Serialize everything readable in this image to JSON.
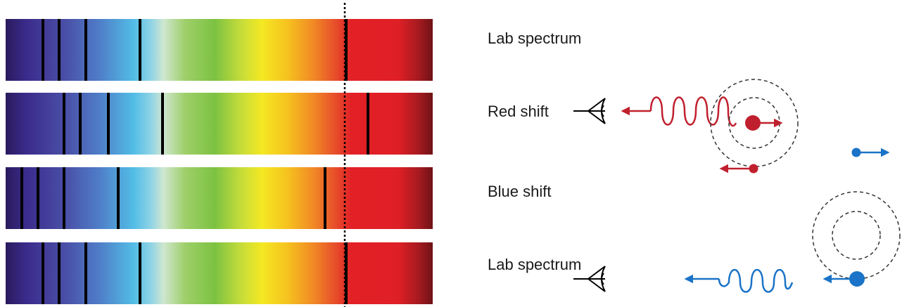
{
  "labels": {
    "lab_top": "Lab spectrum",
    "red": "Red shift",
    "blue": "Blue shift",
    "lab_bottom": "Lab spectrum"
  },
  "colors": {
    "redshift": "#c0202e",
    "blueshift": "#1a73c7",
    "line": "#000000"
  },
  "spectra": [
    {
      "name": "lab-top",
      "lines": [
        0.087,
        0.125,
        0.187,
        0.315,
        0.798
      ]
    },
    {
      "name": "redshifted",
      "lines": [
        0.137,
        0.175,
        0.24,
        0.368,
        0.848
      ]
    },
    {
      "name": "blueshifted",
      "lines": [
        0.038,
        0.075,
        0.137,
        0.263,
        0.748
      ]
    },
    {
      "name": "lab-bottom",
      "lines": [
        0.087,
        0.125,
        0.187,
        0.315,
        0.798
      ]
    }
  ]
}
